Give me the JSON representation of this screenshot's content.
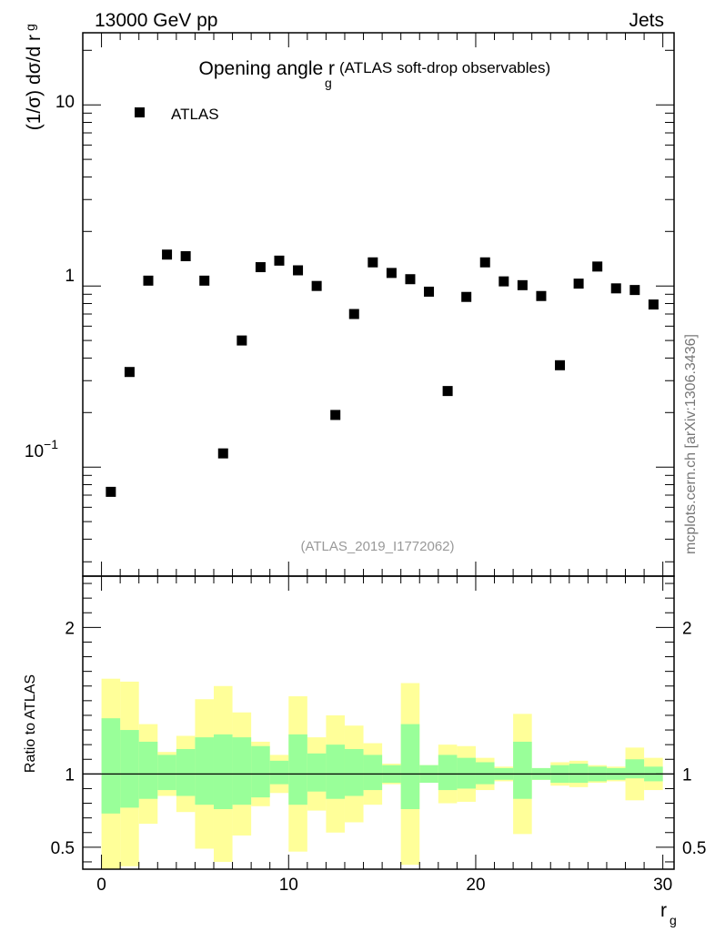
{
  "header": {
    "energy_label": "13000 GeV pp",
    "process_label": "Jets"
  },
  "side_label": "mcplots.cern.ch [arXiv:1306.3436]",
  "chart_data": [
    {
      "type": "scatter",
      "title_main": "Opening angle r",
      "title_sub": "g",
      "title_extra": "(ATLAS soft-drop observables)",
      "analysis_id": "(ATLAS_2019_I1772062)",
      "ylabel_main": "(1/σ) dσ/d r",
      "ylabel_sub": "g",
      "yscale": "log",
      "ylim": [
        0.025,
        25
      ],
      "xlim": [
        -1,
        30.6
      ],
      "ytick_labels": {
        "ten": "10",
        "one": "1",
        "tenth_base": "10",
        "tenth_exp": "−1"
      },
      "legend": {
        "entry": "ATLAS",
        "position": "top-left"
      },
      "series": [
        {
          "name": "ATLAS",
          "x": [
            0.5,
            1.5,
            2.5,
            3.5,
            4.5,
            5.5,
            6.5,
            7.5,
            8.5,
            9.5,
            10.5,
            11.5,
            12.5,
            13.5,
            14.5,
            15.5,
            16.5,
            17.5,
            18.5,
            19.5,
            20.5,
            21.5,
            22.5,
            23.5,
            24.5,
            25.5,
            26.5,
            27.5,
            28.5,
            29.5
          ],
          "values": [
            0.073,
            0.335,
            1.07,
            1.49,
            1.46,
            1.07,
            0.119,
            0.5,
            1.27,
            1.38,
            1.22,
            1.0,
            0.194,
            0.7,
            1.35,
            1.18,
            1.09,
            0.93,
            0.263,
            0.87,
            1.35,
            1.06,
            1.01,
            0.88,
            0.365,
            1.03,
            1.28,
            0.97,
            0.95,
            0.79
          ]
        }
      ]
    },
    {
      "type": "area",
      "ylabel": "Ratio to ATLAS",
      "xlabel_main": "r",
      "xlabel_sub": "g",
      "ylim": [
        0.35,
        2.35
      ],
      "xlim": [
        -1,
        30.6
      ],
      "yticks": [
        0.5,
        1,
        2
      ],
      "ytick_labels": [
        "0.5",
        "1",
        "2"
      ],
      "xticks": [
        0,
        10,
        20,
        30
      ],
      "xtick_labels": [
        "0",
        "10",
        "20",
        "30"
      ],
      "bin_edges": [
        0,
        1,
        2,
        3,
        4,
        5,
        6,
        7,
        8,
        9,
        10,
        11,
        12,
        13,
        14,
        15,
        16,
        17,
        18,
        19,
        20,
        21,
        22,
        23,
        24,
        25,
        26,
        27,
        28,
        29,
        30
      ],
      "stat_band": {
        "color": "#99ff99",
        "lo": [
          0.73,
          0.77,
          0.83,
          0.89,
          0.85,
          0.79,
          0.76,
          0.79,
          0.84,
          0.93,
          0.79,
          0.88,
          0.83,
          0.85,
          0.89,
          0.94,
          0.76,
          0.94,
          0.89,
          0.9,
          0.93,
          0.96,
          0.83,
          0.96,
          0.94,
          0.94,
          0.95,
          0.96,
          0.97,
          0.95
        ],
        "hi": [
          1.38,
          1.3,
          1.22,
          1.13,
          1.17,
          1.25,
          1.27,
          1.25,
          1.19,
          1.09,
          1.27,
          1.14,
          1.2,
          1.17,
          1.13,
          1.06,
          1.34,
          1.06,
          1.13,
          1.11,
          1.08,
          1.04,
          1.22,
          1.04,
          1.06,
          1.07,
          1.05,
          1.04,
          1.1,
          1.05
        ]
      },
      "syst_band": {
        "color": "#ffff99",
        "lo": [
          0.35,
          0.37,
          0.66,
          0.85,
          0.74,
          0.49,
          0.4,
          0.58,
          0.78,
          0.87,
          0.47,
          0.75,
          0.6,
          0.67,
          0.79,
          0.93,
          0.38,
          0.94,
          0.8,
          0.81,
          0.89,
          0.95,
          0.59,
          0.96,
          0.92,
          0.91,
          0.94,
          0.95,
          0.82,
          0.89
        ]
      },
      "reference_line": 1
    }
  ]
}
